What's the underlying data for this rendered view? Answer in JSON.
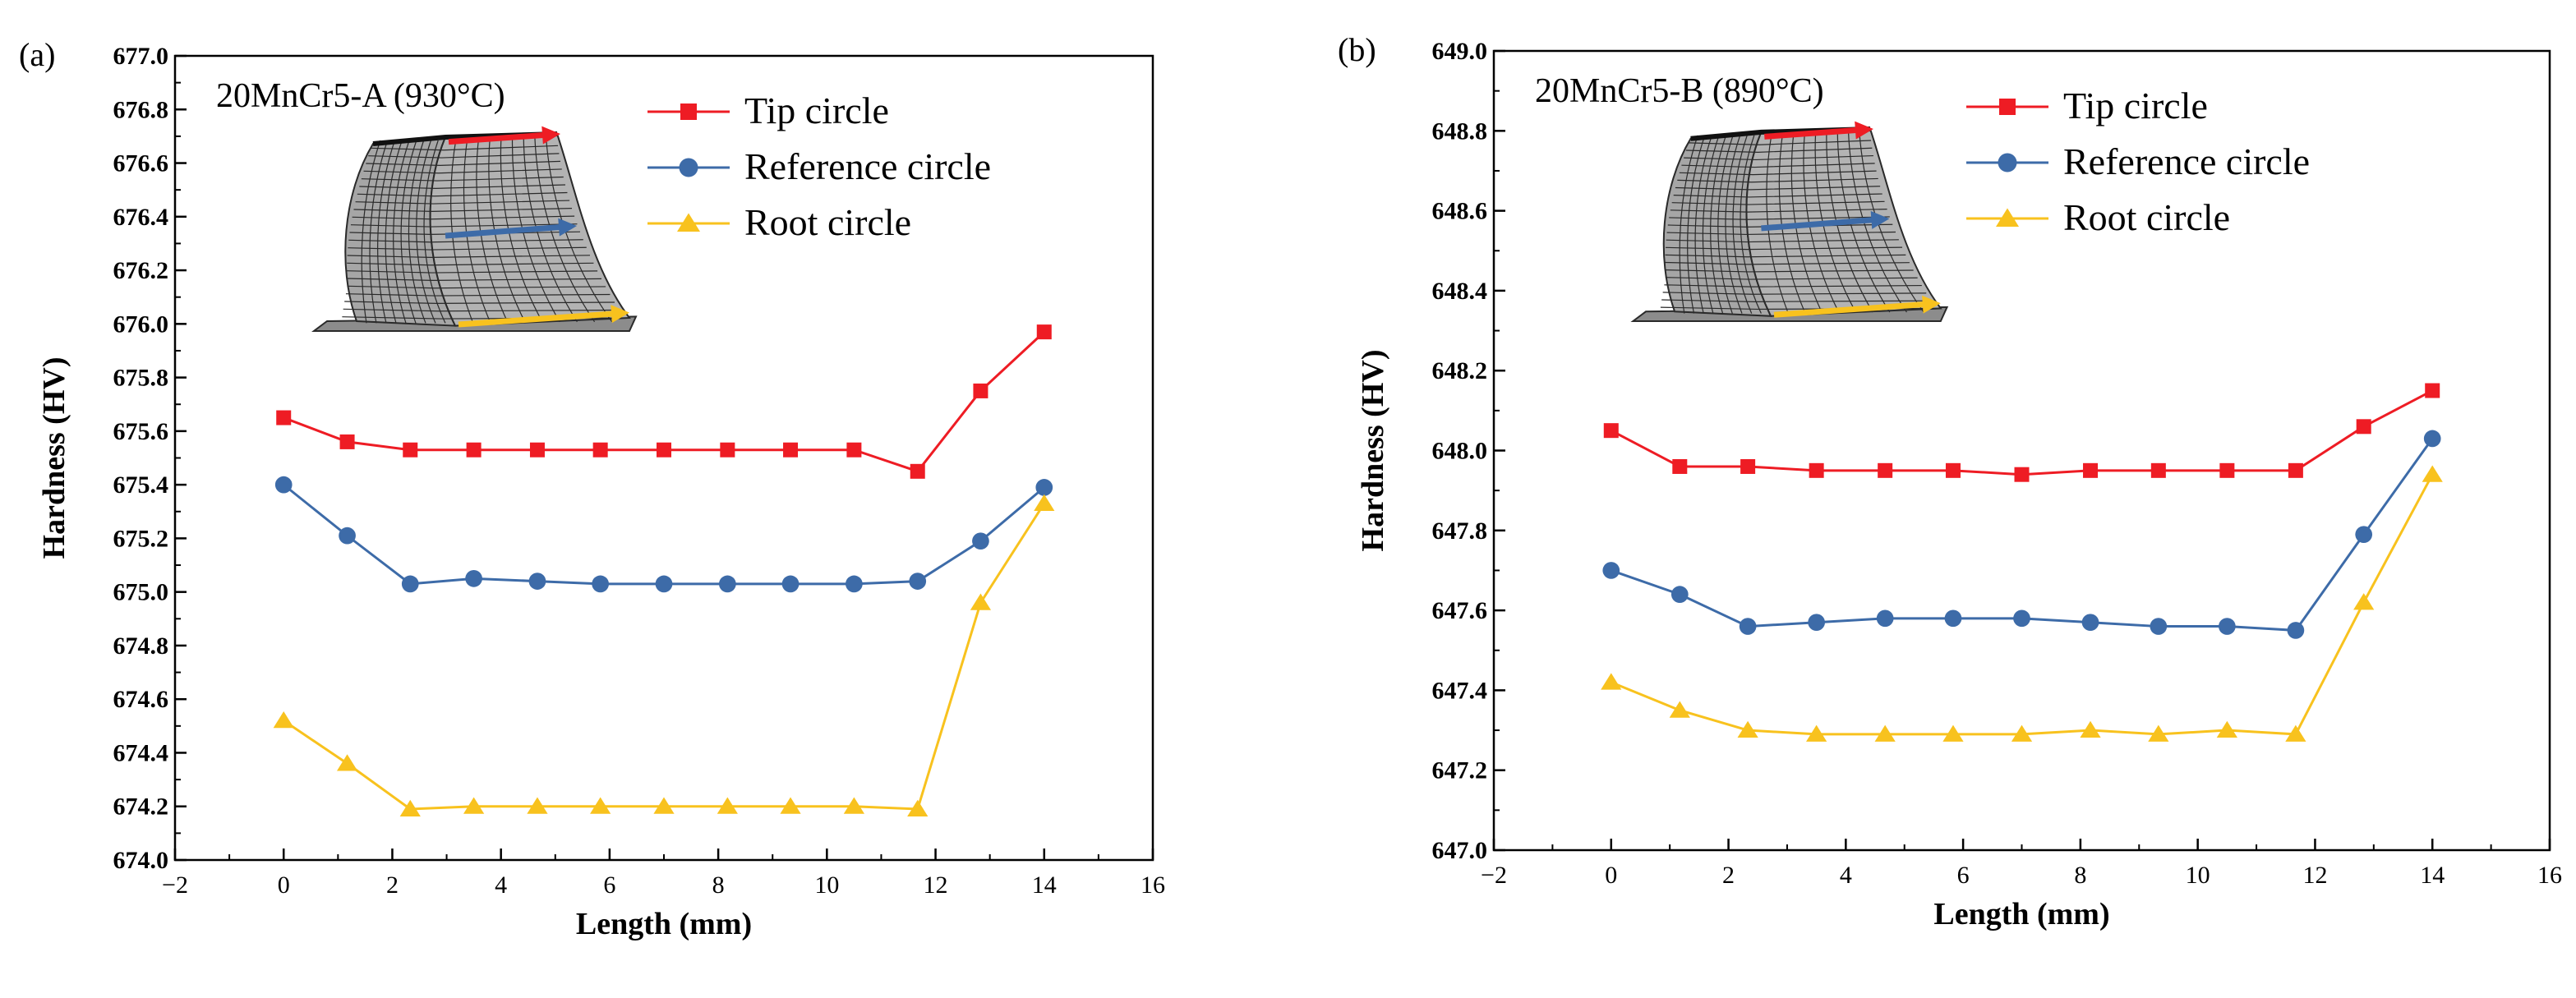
{
  "colors": {
    "tip": "#ee1c24",
    "reference": "#3d6ba8",
    "root": "#f8c21e",
    "axis": "#000000",
    "mesh_fill": "#9a9a9a",
    "mesh_line": "#2a2a2a"
  },
  "chart_data": [
    {
      "panel_label": "(a)",
      "type": "line",
      "title": "20MnCr5-A (930°C)",
      "xlabel": "Length (mm)",
      "ylabel": "Hardness (HV)",
      "xlim": [
        -2,
        16
      ],
      "ylim": [
        674.0,
        677.0
      ],
      "xticks": [
        "−2",
        "0",
        "2",
        "4",
        "6",
        "8",
        "10",
        "12",
        "14",
        "16"
      ],
      "yticks": [
        "674.0",
        "674.2",
        "674.4",
        "674.6",
        "674.8",
        "675.0",
        "675.2",
        "675.4",
        "675.6",
        "675.8",
        "676.0",
        "676.2",
        "676.4",
        "676.6",
        "676.8",
        "677.0"
      ],
      "x": [
        0,
        1.17,
        2.33,
        3.5,
        4.67,
        5.83,
        7.0,
        8.17,
        9.33,
        10.5,
        11.67,
        12.83,
        14.0
      ],
      "series": [
        {
          "name": "Tip circle",
          "marker": "square",
          "values": [
            675.65,
            675.56,
            675.53,
            675.53,
            675.53,
            675.53,
            675.53,
            675.53,
            675.53,
            675.53,
            675.45,
            675.75,
            675.97
          ]
        },
        {
          "name": "Reference circle",
          "marker": "circle",
          "values": [
            675.4,
            675.21,
            675.03,
            675.05,
            675.04,
            675.03,
            675.03,
            675.03,
            675.03,
            675.03,
            675.04,
            675.19,
            675.39
          ]
        },
        {
          "name": "Root circle",
          "marker": "triangle",
          "values": [
            674.52,
            674.36,
            674.19,
            674.2,
            674.2,
            674.2,
            674.2,
            674.2,
            674.2,
            674.2,
            674.19,
            674.96,
            675.33
          ]
        }
      ],
      "legend_position": "top-right",
      "inset": "gear tooth mesh with tip/reference/root arrows"
    },
    {
      "panel_label": "(b)",
      "type": "line",
      "title": "20MnCr5-B (890°C)",
      "xlabel": "Length (mm)",
      "ylabel": "Hardness (HV)",
      "xlim": [
        -2,
        16
      ],
      "ylim": [
        647.0,
        649.0
      ],
      "xticks": [
        "−2",
        "0",
        "2",
        "4",
        "6",
        "8",
        "10",
        "12",
        "14",
        "16"
      ],
      "yticks": [
        "647.0",
        "647.2",
        "647.4",
        "647.6",
        "647.8",
        "648.0",
        "648.2",
        "648.4",
        "648.6",
        "648.8",
        "649.0"
      ],
      "x": [
        0,
        1.17,
        2.33,
        3.5,
        4.67,
        5.83,
        7.0,
        8.17,
        9.33,
        10.5,
        11.67,
        12.83,
        14.0
      ],
      "series": [
        {
          "name": "Tip circle",
          "marker": "square",
          "values": [
            648.05,
            647.96,
            647.96,
            647.95,
            647.95,
            647.95,
            647.94,
            647.95,
            647.95,
            647.95,
            647.95,
            648.06,
            648.15
          ]
        },
        {
          "name": "Reference circle",
          "marker": "circle",
          "values": [
            647.7,
            647.64,
            647.56,
            647.57,
            647.58,
            647.58,
            647.58,
            647.57,
            647.56,
            647.56,
            647.55,
            647.79,
            648.03
          ]
        },
        {
          "name": "Root circle",
          "marker": "triangle",
          "values": [
            647.42,
            647.35,
            647.3,
            647.29,
            647.29,
            647.29,
            647.29,
            647.3,
            647.29,
            647.3,
            647.29,
            647.62,
            647.94
          ]
        }
      ],
      "legend_position": "top-right",
      "inset": "gear tooth mesh with tip/reference/root arrows"
    }
  ]
}
